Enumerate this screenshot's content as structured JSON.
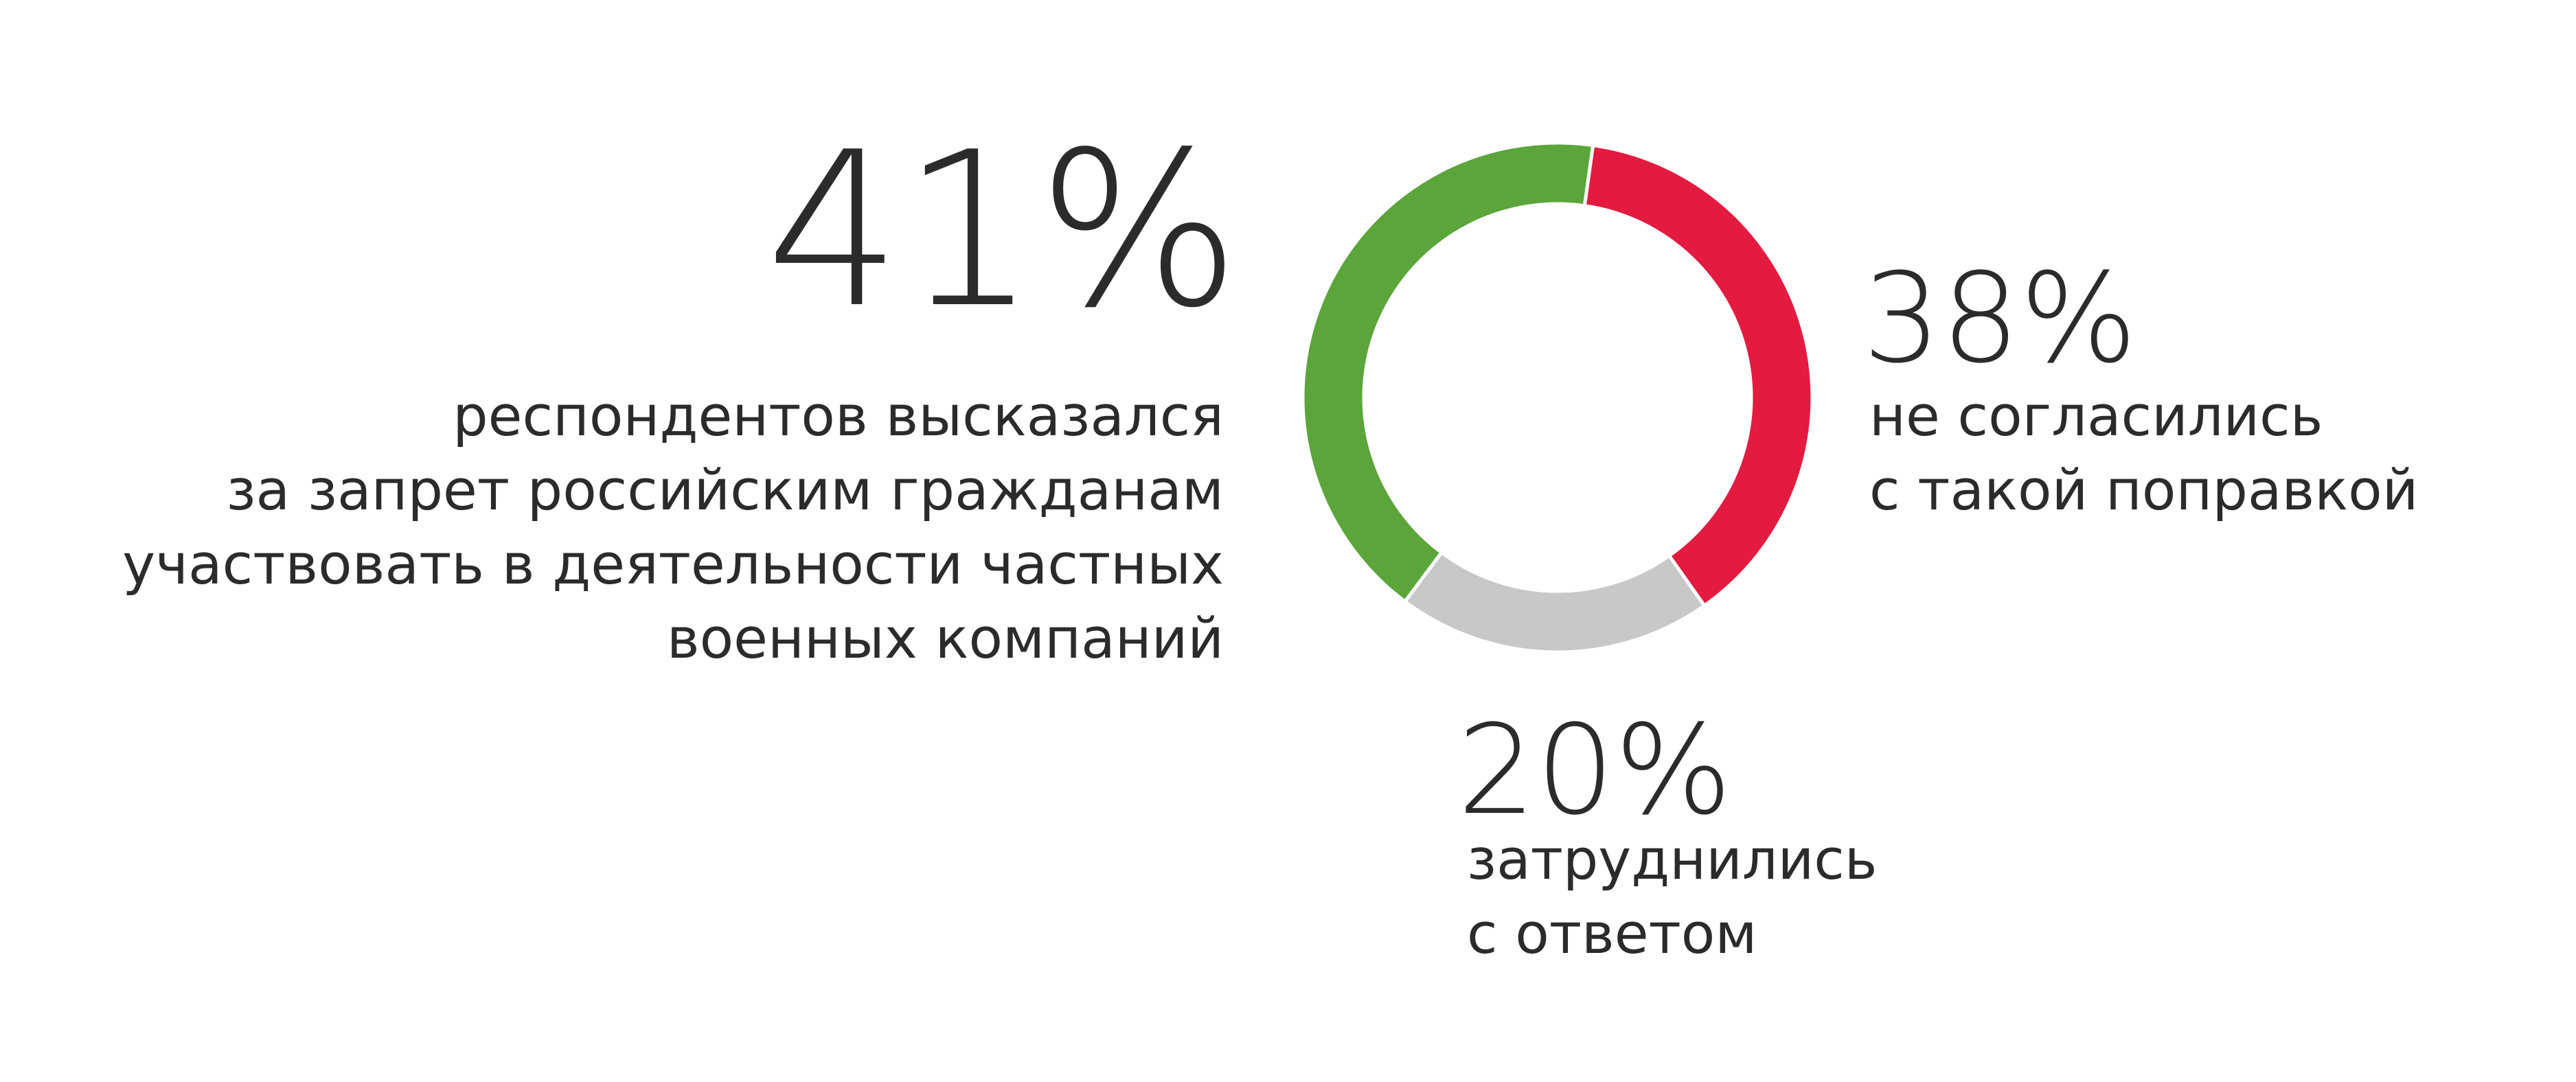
{
  "chart_data": {
    "type": "pie",
    "donut": true,
    "values": [
      41,
      38,
      20
    ],
    "value_labels": [
      "41%",
      "38%",
      "20%"
    ],
    "colors": [
      "#5ba53b",
      "#e31b40",
      "#c7c8c7"
    ],
    "descriptions": [
      [
        "респондентов высказался",
        "за запрет российским гражданам",
        "участвовать в деятельности частных",
        "военных компаний"
      ],
      [
        "не согласились",
        "с такой поправкой"
      ],
      [
        "затруднились",
        "с ответом"
      ]
    ]
  }
}
